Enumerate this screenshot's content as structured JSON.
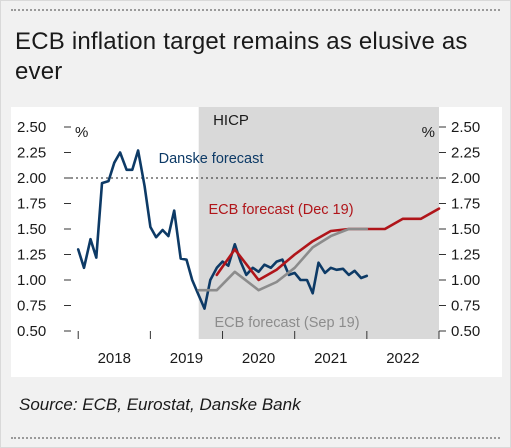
{
  "title": "ECB inflation target remains as elusive as ever",
  "source": "Source: ECB, Eurostat, Danske Bank",
  "chart_data": {
    "type": "line",
    "title": "HICP",
    "y_unit_left": "%",
    "y_unit_right": "%",
    "ylim": [
      0.5,
      2.5
    ],
    "yticks": [
      "2.50",
      "2.25",
      "2.00",
      "1.75",
      "1.50",
      "1.25",
      "1.00",
      "0.75",
      "0.50"
    ],
    "x_range": [
      2017.9,
      2023.0
    ],
    "x_tick_positions": [
      2018,
      2019,
      2020,
      2021,
      2022,
      2023
    ],
    "x_labels": [
      {
        "label": "2018",
        "x": 2018.5
      },
      {
        "label": "2019",
        "x": 2019.5
      },
      {
        "label": "2020",
        "x": 2020.5
      },
      {
        "label": "2021",
        "x": 2021.5
      },
      {
        "label": "2022",
        "x": 2022.5
      }
    ],
    "target_line": 2.0,
    "shaded_region": [
      2019.67,
      2023.0
    ],
    "grid": false,
    "series": [
      {
        "name": "Danske forecast",
        "color": "#0d3a66",
        "points": [
          [
            2018.0,
            1.3
          ],
          [
            2018.08,
            1.12
          ],
          [
            2018.17,
            1.4
          ],
          [
            2018.25,
            1.22
          ],
          [
            2018.33,
            1.95
          ],
          [
            2018.42,
            1.97
          ],
          [
            2018.5,
            2.15
          ],
          [
            2018.58,
            2.25
          ],
          [
            2018.67,
            2.08
          ],
          [
            2018.75,
            2.08
          ],
          [
            2018.83,
            2.27
          ],
          [
            2018.92,
            1.92
          ],
          [
            2019.0,
            1.52
          ],
          [
            2019.08,
            1.42
          ],
          [
            2019.17,
            1.49
          ],
          [
            2019.25,
            1.43
          ],
          [
            2019.33,
            1.68
          ],
          [
            2019.42,
            1.21
          ],
          [
            2019.5,
            1.2
          ],
          [
            2019.58,
            1.0
          ],
          [
            2019.67,
            0.85
          ],
          [
            2019.75,
            0.72
          ],
          [
            2019.83,
            1.0
          ],
          [
            2019.92,
            1.12
          ],
          [
            2020.0,
            1.18
          ],
          [
            2020.08,
            1.14
          ],
          [
            2020.17,
            1.35
          ],
          [
            2020.25,
            1.18
          ],
          [
            2020.33,
            1.05
          ],
          [
            2020.42,
            1.12
          ],
          [
            2020.5,
            1.08
          ],
          [
            2020.58,
            1.15
          ],
          [
            2020.67,
            1.12
          ],
          [
            2020.75,
            1.18
          ],
          [
            2020.83,
            1.2
          ],
          [
            2020.92,
            1.05
          ],
          [
            2021.0,
            1.07
          ],
          [
            2021.08,
            1.0
          ],
          [
            2021.17,
            1.0
          ],
          [
            2021.25,
            0.87
          ],
          [
            2021.33,
            1.17
          ],
          [
            2021.42,
            1.07
          ],
          [
            2021.5,
            1.12
          ],
          [
            2021.58,
            1.1
          ],
          [
            2021.67,
            1.11
          ],
          [
            2021.75,
            1.05
          ],
          [
            2021.83,
            1.09
          ],
          [
            2021.92,
            1.02
          ],
          [
            2022.0,
            1.04
          ]
        ]
      },
      {
        "name": "ECB forecast (Dec 19)",
        "color": "#b0151a",
        "points": [
          [
            2019.92,
            1.05
          ],
          [
            2020.17,
            1.3
          ],
          [
            2020.5,
            1.0
          ],
          [
            2020.75,
            1.1
          ],
          [
            2021.0,
            1.25
          ],
          [
            2021.25,
            1.38
          ],
          [
            2021.5,
            1.48
          ],
          [
            2021.75,
            1.5
          ],
          [
            2022.0,
            1.5
          ],
          [
            2022.25,
            1.5
          ],
          [
            2022.5,
            1.6
          ],
          [
            2022.75,
            1.6
          ],
          [
            2023.0,
            1.7
          ]
        ]
      },
      {
        "name": "ECB forecast (Sep 19)",
        "color": "#8c8c8c",
        "points": [
          [
            2019.67,
            0.9
          ],
          [
            2019.92,
            0.9
          ],
          [
            2020.17,
            1.08
          ],
          [
            2020.5,
            0.9
          ],
          [
            2020.75,
            0.98
          ],
          [
            2021.0,
            1.12
          ],
          [
            2021.25,
            1.32
          ],
          [
            2021.5,
            1.43
          ],
          [
            2021.75,
            1.5
          ],
          [
            2022.0,
            1.5
          ]
        ]
      }
    ]
  }
}
